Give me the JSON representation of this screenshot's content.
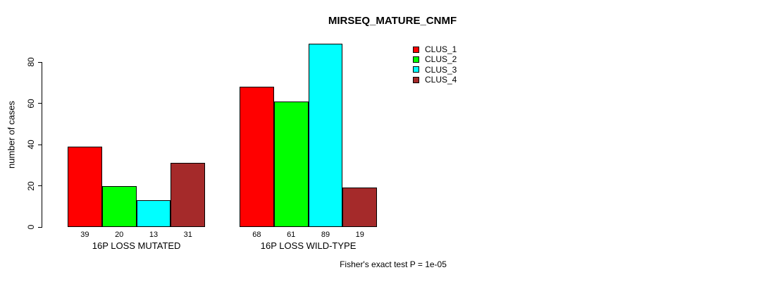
{
  "chart_data": {
    "type": "bar",
    "title": "MIRSEQ_MATURE_CNMF",
    "ylabel": "number of cases",
    "xlabel": "",
    "ylim": [
      0,
      80
    ],
    "yticks": [
      0,
      20,
      40,
      60,
      80
    ],
    "grid": false,
    "legend_position": "top-right",
    "categories": [
      "16P LOSS MUTATED",
      "16P LOSS WILD-TYPE"
    ],
    "series": [
      {
        "name": "CLUS_1",
        "color": "#ff0000",
        "values": [
          39,
          68
        ]
      },
      {
        "name": "CLUS_2",
        "color": "#00ff00",
        "values": [
          20,
          61
        ]
      },
      {
        "name": "CLUS_3",
        "color": "#00ffff",
        "values": [
          13,
          89
        ]
      },
      {
        "name": "CLUS_4",
        "color": "#a52a2a",
        "values": [
          31,
          19
        ]
      }
    ],
    "bar_value_labels": [
      "39",
      "20",
      "13",
      "31",
      "68",
      "61",
      "89",
      "19"
    ],
    "footnote": "Fisher's exact test P = 1e-05"
  }
}
